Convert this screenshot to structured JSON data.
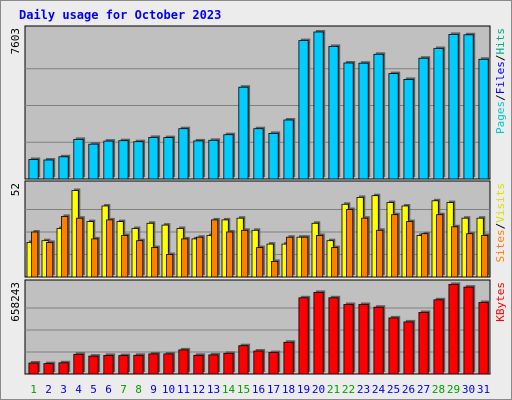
{
  "chart_data": {
    "type": "bar",
    "title": "Daily usage for October 2023",
    "categories": [
      "1",
      "2",
      "3",
      "4",
      "5",
      "6",
      "7",
      "8",
      "9",
      "10",
      "11",
      "12",
      "13",
      "14",
      "15",
      "16",
      "17",
      "18",
      "19",
      "20",
      "21",
      "22",
      "23",
      "24",
      "25",
      "26",
      "27",
      "28",
      "29",
      "30",
      "31"
    ],
    "weekend_days": [
      "1",
      "7",
      "8",
      "14",
      "15",
      "21",
      "22",
      "28",
      "29"
    ],
    "panels": [
      {
        "id": "pages-files-hits",
        "ymax_label": "7603",
        "ymax": 7603,
        "legend": [
          "Pages",
          "/",
          "Files",
          "/",
          "Hits"
        ],
        "series": [
          {
            "name": "Hits",
            "color": "#00ccff",
            "values": [
              1010,
              985,
              1150,
              2050,
              1800,
              1960,
              1980,
              1930,
              2150,
              2140,
              2600,
              1970,
              2000,
              2290,
              4750,
              2600,
              2360,
              3050,
              7160,
              7603,
              6860,
              6000,
              5990,
              6450,
              5450,
              5150,
              6250,
              6750,
              7480,
              7460,
              6190
            ]
          }
        ],
        "grid_values": [
          1900,
          3800,
          5700
        ]
      },
      {
        "id": "sites-visits",
        "ymax_label": "52",
        "ymax": 52,
        "legend": [
          "Sites",
          "/",
          "Visits"
        ],
        "series": [
          {
            "name": "Visits",
            "color": "#ffff00",
            "values": [
              20,
              21,
              28,
              50,
              32,
              41,
              32,
              28,
              31,
              30,
              28,
              22,
              24,
              33,
              34,
              27,
              19,
              19,
              23,
              31,
              21,
              42,
              46,
              47,
              43,
              41,
              24,
              44,
              43,
              34,
              34
            ]
          },
          {
            "name": "Sites",
            "color": "#ff8000",
            "values": [
              26,
              20,
              35,
              34,
              22,
              33,
              24,
              21,
              17,
              13,
              22,
              23,
              33,
              26,
              27,
              17,
              9,
              23,
              23,
              24,
              17,
              39,
              34,
              27,
              36,
              32,
              25,
              36,
              29,
              25,
              24
            ]
          }
        ],
        "grid_values": [
          13,
          26,
          39
        ]
      },
      {
        "id": "kbytes",
        "ymax_label": "658243",
        "ymax": 658243,
        "legend": [
          "KBytes"
        ],
        "series": [
          {
            "name": "KBytes",
            "color": "#ff0000",
            "values": [
              82000,
              78000,
              84000,
              147000,
              134000,
              139000,
              138000,
              140000,
              150000,
              150000,
              180000,
              140000,
              143000,
              155000,
              212000,
              172000,
              160000,
              237000,
              570000,
              610000,
              570000,
              520000,
              520000,
              500000,
              420000,
              390000,
              460000,
              555000,
              670000,
              650000,
              535000
            ]
          }
        ],
        "grid_values": [
          164500,
          329000,
          493500
        ]
      }
    ],
    "colors": {
      "background": "#ececec",
      "plot_background": "#c0c0c0",
      "grid": "#808080",
      "title_text": "#0000ff",
      "day_label": "#0000ff",
      "weekend_label": "#00a000",
      "pages": "#00cccc",
      "files": "#0000ff",
      "hits": "#00aa88",
      "sites": "#ff8000",
      "visits": "#dddd00",
      "kbytes": "#ff0000",
      "separator": "#000000"
    }
  }
}
